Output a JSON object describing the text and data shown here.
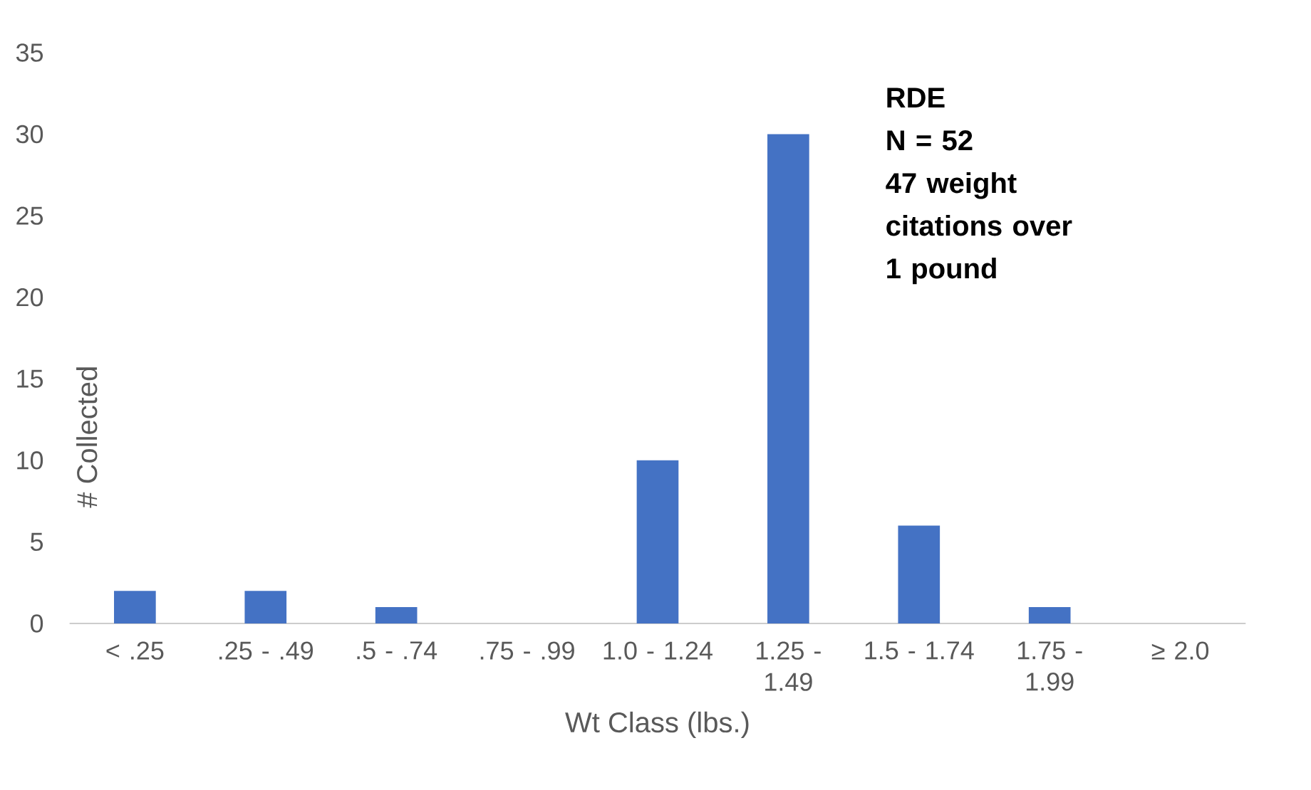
{
  "chart_data": {
    "type": "bar",
    "xlabel": "Wt Class (lbs.)",
    "ylabel": "# Collected",
    "categories": [
      "< .25",
      ".25 - .49",
      ".5 - .74",
      ".75 - .99",
      "1.0 - 1.24",
      "1.25 - 1.49",
      "1.5 - 1.74",
      "1.75 - 1.99",
      "≥ 2.0"
    ],
    "values": [
      2,
      2,
      1,
      0,
      10,
      30,
      6,
      1,
      0
    ],
    "color": "#4472c4",
    "ylim": [
      0,
      35
    ],
    "yticks": [
      0,
      5,
      10,
      15,
      20,
      25,
      30,
      35
    ],
    "annotations": [
      "RDE",
      "N = 52",
      "47 weight citations over 1 pound"
    ]
  }
}
